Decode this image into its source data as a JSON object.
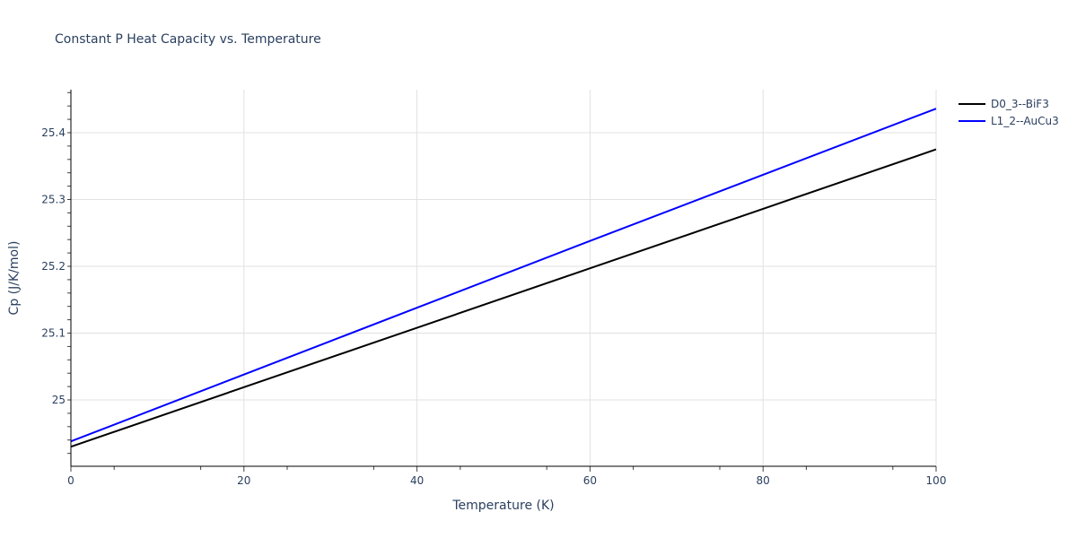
{
  "title": "Constant P Heat Capacity vs. Temperature",
  "colors": {
    "series_black": "#000000",
    "series_blue": "#0000ff",
    "grid": "#e1e1e1",
    "axis": "#000000",
    "text": "#2a3f5f"
  },
  "legend": [
    {
      "label": "D0_3--BiF3",
      "color": "#000000"
    },
    {
      "label": "L1_2--AuCu3",
      "color": "#0000ff"
    }
  ],
  "chart_data": {
    "type": "line",
    "title": "Constant P Heat Capacity vs. Temperature",
    "xlabel": "Temperature (K)",
    "ylabel": "Cp (J/K/mol)",
    "xlim": [
      0,
      100
    ],
    "ylim": [
      24.9007,
      25.4644
    ],
    "grid": true,
    "legend_position": "right-top",
    "x_ticks": [
      0,
      20,
      40,
      60,
      80,
      100
    ],
    "x_tick_labels": [
      "0",
      "20",
      "40",
      "60",
      "80",
      "100"
    ],
    "y_ticks": [
      25.0,
      25.1,
      25.2,
      25.3,
      25.4
    ],
    "y_tick_labels": [
      "25",
      "25.1",
      "25.2",
      "25.3",
      "25.4"
    ],
    "x": [
      0,
      20,
      40,
      60,
      80,
      100
    ],
    "series": [
      {
        "name": "D0_3--BiF3",
        "color": "#000000",
        "values": [
          24.93,
          25.019,
          25.108,
          25.197,
          25.286,
          25.375
        ]
      },
      {
        "name": "L1_2--AuCu3",
        "color": "#0000ff",
        "values": [
          24.938,
          25.038,
          25.138,
          25.238,
          25.337,
          25.436
        ]
      }
    ]
  }
}
